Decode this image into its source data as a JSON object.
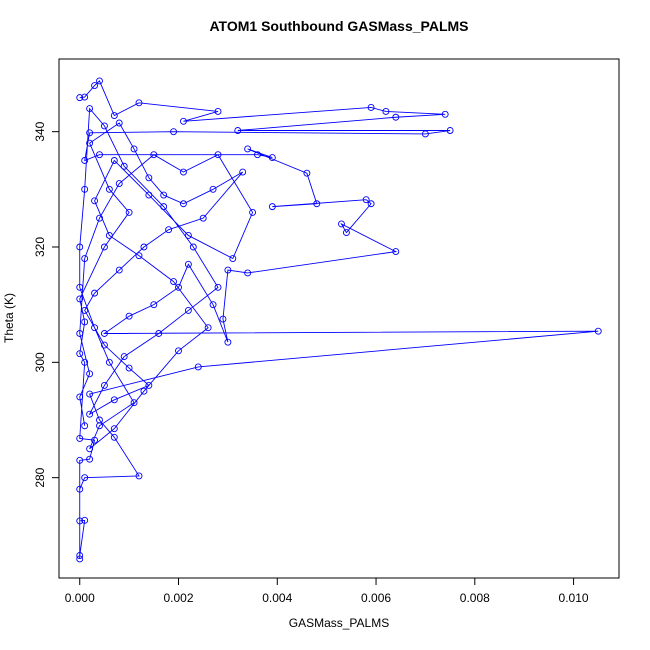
{
  "chart_data": {
    "type": "line",
    "title": "ATOM1 Southbound GASMass_PALMS",
    "x_label": "GASMass_PALMS",
    "y_label": "Theta (K)",
    "color": "#0000ff",
    "markers": true,
    "x": [
      0.0,
      0.0001,
      0.0003,
      0.0004,
      0.0007,
      0.0012,
      0.0028,
      0.0021,
      0.0059,
      0.0062,
      0.0074,
      0.0064,
      0.0032,
      0.0075,
      0.007,
      0.0019,
      0.0002,
      0.0001,
      0.0004,
      0.0036,
      0.0039,
      0.0034,
      0.0046,
      0.0048,
      0.0039,
      0.0058,
      0.0059,
      0.0054,
      0.0053,
      0.0064,
      0.0034,
      0.003,
      0.0029,
      0.003,
      0.0027,
      0.0022,
      0.002,
      0.0015,
      0.001,
      0.0005,
      0.0105,
      0.0024,
      0.0002,
      0.0004,
      0.0007,
      0.0012,
      0.0001,
      0.0,
      0.0,
      0.0001,
      0.0,
      0.0,
      0.0,
      0.0002,
      0.0003,
      0.0,
      0.0001,
      0.0,
      0.0001,
      0.0,
      0.0005,
      0.001,
      0.0006,
      0.0002,
      0.0008,
      0.0011,
      0.0014,
      0.0017,
      0.0021,
      0.0027,
      0.0033,
      0.0025,
      0.0018,
      0.0013,
      0.0008,
      0.0003,
      0.0001,
      0.0005,
      0.001,
      0.0014,
      0.0007,
      0.0002,
      0.0005,
      0.0009,
      0.0016,
      0.0022,
      0.0028,
      0.0023,
      0.0017,
      0.0009,
      0.0005,
      0.0002,
      0.0001,
      0.0,
      0.0,
      0.0003,
      0.0006,
      0.0011,
      0.0004,
      0.0002,
      0.0007,
      0.0013,
      0.002,
      0.0026,
      0.0019,
      0.0012,
      0.0006,
      0.0003,
      0.0007,
      0.0014,
      0.0022,
      0.0031,
      0.0035,
      0.0028,
      0.0021,
      0.0015,
      0.0008,
      0.0004,
      0.0001,
      0.0,
      0.0002,
      0.0,
      0.0001
    ],
    "values": [
      345.9,
      346.0,
      348.0,
      348.8,
      342.8,
      345.0,
      343.5,
      341.8,
      344.2,
      343.5,
      343.0,
      342.5,
      340.2,
      340.2,
      339.6,
      340.0,
      339.8,
      335.0,
      336.0,
      336.0,
      335.5,
      337.0,
      332.8,
      327.5,
      327.0,
      328.2,
      327.5,
      322.5,
      324.0,
      319.2,
      315.5,
      316.0,
      307.5,
      303.5,
      310.0,
      317.0,
      313.0,
      310.0,
      308.0,
      305.0,
      305.4,
      299.2,
      294.5,
      290.0,
      287.0,
      280.3,
      280.0,
      278.0,
      272.5,
      272.6,
      266.5,
      265.9,
      283.0,
      283.2,
      286.5,
      286.8,
      300.0,
      301.5,
      307.0,
      311.0,
      320.0,
      326.0,
      330.0,
      338.0,
      341.5,
      337.0,
      332.0,
      329.0,
      327.5,
      330.0,
      333.0,
      325.0,
      323.0,
      320.0,
      316.0,
      312.0,
      309.0,
      303.0,
      299.0,
      296.0,
      293.5,
      291.0,
      296.0,
      301.0,
      305.0,
      309.0,
      313.0,
      320.0,
      327.0,
      334.0,
      341.0,
      344.0,
      330.0,
      320.0,
      313.0,
      306.0,
      300.0,
      293.0,
      289.0,
      285.0,
      288.5,
      295.0,
      302.0,
      306.0,
      314.0,
      318.5,
      322.0,
      328.0,
      335.0,
      329.0,
      322.0,
      318.0,
      326.0,
      336.0,
      333.0,
      336.0,
      331.0,
      325.0,
      318.0,
      305.0,
      298.0,
      294.0,
      289.0
    ],
    "xlim": [
      -0.00042,
      0.01092
    ],
    "ylim": [
      262.6,
      352.6
    ],
    "xticks": [
      {
        "value": 0,
        "label": "0.000"
      },
      {
        "value": 0.002,
        "label": "0.002"
      },
      {
        "value": 0.004,
        "label": "0.004"
      },
      {
        "value": 0.006,
        "label": "0.006"
      },
      {
        "value": 0.008,
        "label": "0.008"
      },
      {
        "value": 0.01,
        "label": "0.010"
      }
    ],
    "yticks": [
      280,
      300,
      320,
      340
    ]
  }
}
